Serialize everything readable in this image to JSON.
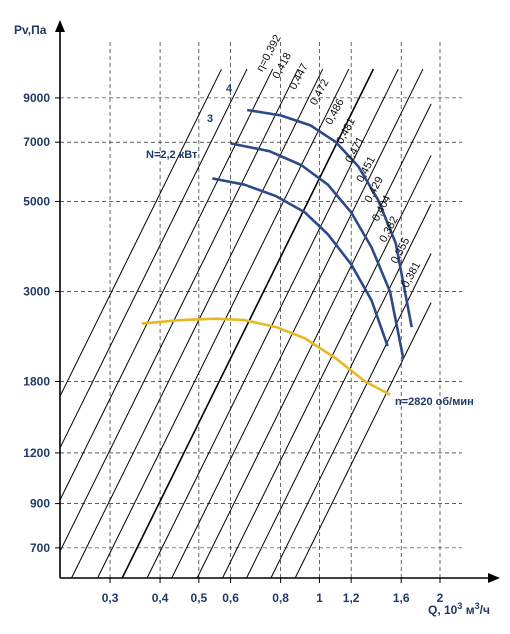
{
  "chart_data": {
    "type": "line",
    "title": "",
    "x_axis": {
      "label": "Q, 10",
      "label_sup1": "3",
      "label_mid": " м",
      "label_sup2": "3",
      "label_tail": "/ч",
      "scale": "log",
      "ticks": [
        {
          "label": "0,3",
          "value": 0.3
        },
        {
          "label": "0,4",
          "value": 0.4
        },
        {
          "label": "0,5",
          "value": 0.5
        },
        {
          "label": "0,6",
          "value": 0.6
        },
        {
          "label": "0,8",
          "value": 0.8
        },
        {
          "label": "1",
          "value": 1.0
        },
        {
          "label": "1,2",
          "value": 1.2
        },
        {
          "label": "1,6",
          "value": 1.6
        },
        {
          "label": "2",
          "value": 2.0
        }
      ],
      "range": [
        0.225,
        2.0
      ]
    },
    "y_axis": {
      "label": "Pv,Па",
      "scale": "log",
      "ticks": [
        {
          "label": "700",
          "value": 700
        },
        {
          "label": "900",
          "value": 900
        },
        {
          "label": "1200",
          "value": 1200
        },
        {
          "label": "1800",
          "value": 1800
        },
        {
          "label": "3000",
          "value": 3000
        },
        {
          "label": "5000",
          "value": 5000
        },
        {
          "label": "7000",
          "value": 7000
        },
        {
          "label": "9000",
          "value": 9000
        }
      ],
      "range": [
        590,
        12500
      ]
    },
    "grid": true,
    "power_lines": {
      "label": "N=2,2 кВт",
      "note": "diagonal constant-power lines, slope ~2 on log-log axes",
      "lines": [
        {
          "Q": 0.19,
          "P": 1180
        },
        {
          "Q": 0.22,
          "P": 1180
        },
        {
          "Q": 0.255,
          "P": 1180
        },
        {
          "Q": 0.295,
          "P": 1180
        },
        {
          "Q": 0.34,
          "P": 1180
        },
        {
          "Q": 0.395,
          "P": 1180
        },
        {
          "Q": 0.455,
          "P": 1180
        },
        {
          "Q": 0.525,
          "P": 1180
        },
        {
          "Q": 0.605,
          "P": 1180
        },
        {
          "Q": 0.7,
          "P": 1180
        },
        {
          "Q": 0.81,
          "P": 1180
        },
        {
          "Q": 0.93,
          "P": 1180
        },
        {
          "Q": 1.07,
          "P": 1180
        },
        {
          "Q": 1.23,
          "P": 1180
        }
      ]
    },
    "efficiency_labels": [
      {
        "text": "η=0,392",
        "Q": 0.72,
        "P": 10400
      },
      {
        "text": "0,418",
        "Q": 0.79,
        "P": 10000
      },
      {
        "text": "0,447",
        "Q": 0.87,
        "P": 9400
      },
      {
        "text": "0,472",
        "Q": 0.98,
        "P": 8600
      },
      {
        "text": "0,486",
        "Q": 1.07,
        "P": 7700
      },
      {
        "text": "0,481",
        "Q": 1.14,
        "P": 6900
      },
      {
        "text": "0,471",
        "Q": 1.2,
        "P": 6200
      },
      {
        "text": "0,451",
        "Q": 1.28,
        "P": 5550
      },
      {
        "text": "0,429",
        "Q": 1.34,
        "P": 4950
      },
      {
        "text": "0,404",
        "Q": 1.4,
        "P": 4450
      },
      {
        "text": "0,382",
        "Q": 1.46,
        "P": 3950
      },
      {
        "text": "0,355",
        "Q": 1.56,
        "P": 3500
      },
      {
        "text": "0,381",
        "Q": 1.66,
        "P": 3050
      }
    ],
    "series": [
      {
        "name": "4",
        "color": "#2b4a8a",
        "points": [
          [
            0.66,
            8400
          ],
          [
            0.8,
            8150
          ],
          [
            0.95,
            7700
          ],
          [
            1.1,
            7000
          ],
          [
            1.25,
            6100
          ],
          [
            1.4,
            5050
          ],
          [
            1.55,
            3950
          ],
          [
            1.7,
            2450
          ]
        ]
      },
      {
        "name": "3",
        "color": "#2b4a8a",
        "points": [
          [
            0.6,
            6950
          ],
          [
            0.75,
            6650
          ],
          [
            0.9,
            6150
          ],
          [
            1.05,
            5500
          ],
          [
            1.2,
            4700
          ],
          [
            1.35,
            3850
          ],
          [
            1.5,
            3000
          ],
          [
            1.62,
            2050
          ]
        ]
      },
      {
        "name": "",
        "color": "#2b4a8a",
        "points": [
          [
            0.54,
            5700
          ],
          [
            0.65,
            5500
          ],
          [
            0.78,
            5150
          ],
          [
            0.92,
            4700
          ],
          [
            1.05,
            4150
          ],
          [
            1.2,
            3500
          ],
          [
            1.35,
            2850
          ],
          [
            1.48,
            2200
          ]
        ]
      },
      {
        "name": "n=2820 об/мин",
        "color": "#e8b820",
        "points": [
          [
            0.36,
            2500
          ],
          [
            0.45,
            2550
          ],
          [
            0.55,
            2570
          ],
          [
            0.65,
            2550
          ],
          [
            0.78,
            2450
          ],
          [
            0.92,
            2300
          ],
          [
            1.1,
            2050
          ],
          [
            1.3,
            1800
          ],
          [
            1.5,
            1670
          ]
        ]
      }
    ],
    "annotations": {
      "curve4": "4",
      "curve3": "3",
      "power": "N=2,2 кВт",
      "speed": "n=2820 об/мин"
    },
    "colors": {
      "axis": "#000000",
      "text": "#1f3a68",
      "blue_curve": "#2b4a8a",
      "yellow_curve": "#e8b820",
      "grid": "#000000"
    }
  }
}
